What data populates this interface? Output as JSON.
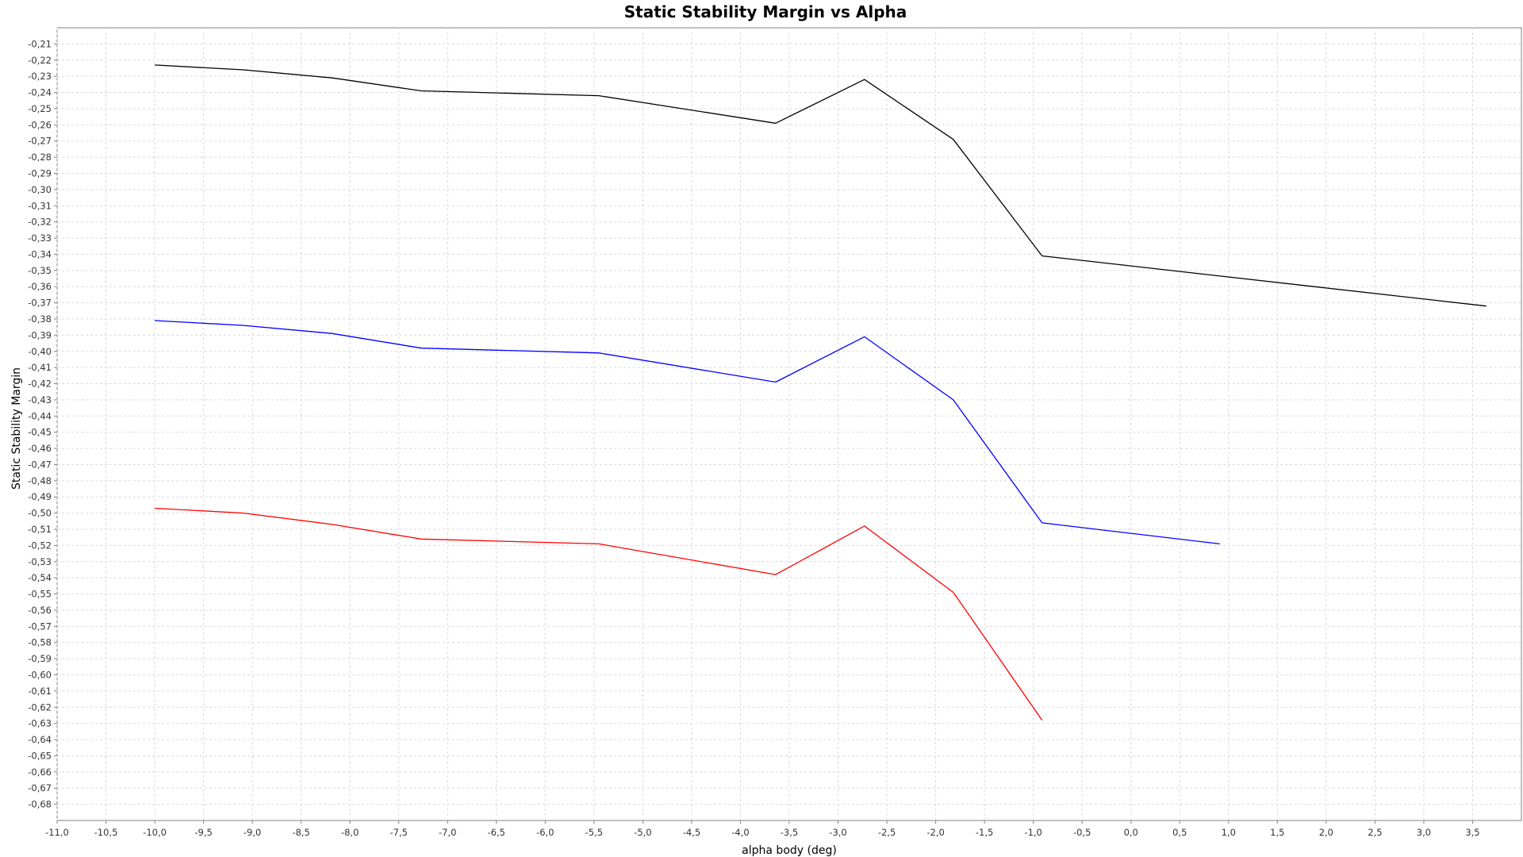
{
  "chart_data": {
    "type": "line",
    "title": "Static Stability Margin vs Alpha",
    "xlabel": "alpha body (deg)",
    "ylabel": "Static Stability Margin",
    "xlim": [
      -11.0,
      4.0
    ],
    "ylim": [
      -0.69,
      -0.2
    ],
    "x_ticks": [
      "-11,0",
      "-10,5",
      "-10,0",
      "-9,5",
      "-9,0",
      "-8,5",
      "-8,0",
      "-7,5",
      "-7,0",
      "-6,5",
      "-6,0",
      "-5,5",
      "-5,0",
      "-4,5",
      "-4,0",
      "-3,5",
      "-3,0",
      "-2,5",
      "-2,0",
      "-1,5",
      "-1,0",
      "-0,5",
      "0,0",
      "0,5",
      "1,0",
      "1,5",
      "2,0",
      "2,5",
      "3,0",
      "3,5"
    ],
    "y_ticks": [
      "-0,21",
      "-0,22",
      "-0,23",
      "-0,24",
      "-0,25",
      "-0,26",
      "-0,27",
      "-0,28",
      "-0,29",
      "-0,30",
      "-0,31",
      "-0,32",
      "-0,33",
      "-0,34",
      "-0,35",
      "-0,36",
      "-0,37",
      "-0,38",
      "-0,39",
      "-0,40",
      "-0,41",
      "-0,42",
      "-0,43",
      "-0,44",
      "-0,45",
      "-0,46",
      "-0,47",
      "-0,48",
      "-0,49",
      "-0,50",
      "-0,51",
      "-0,52",
      "-0,53",
      "-0,54",
      "-0,55",
      "-0,56",
      "-0,57",
      "-0,58",
      "-0,59",
      "-0,60",
      "-0,61",
      "-0,62",
      "-0,63",
      "-0,64",
      "-0,65",
      "-0,66",
      "-0,67",
      "-0,68"
    ],
    "grid": true,
    "series": [
      {
        "color": "#000000",
        "x": [
          -10.0,
          -9.09,
          -8.18,
          -7.27,
          -5.45,
          -3.64,
          -2.73,
          -1.82,
          -0.91,
          3.64
        ],
        "y": [
          -0.223,
          -0.226,
          -0.231,
          -0.239,
          -0.242,
          -0.259,
          -0.232,
          -0.269,
          -0.341,
          -0.372
        ]
      },
      {
        "color": "#0000ff",
        "x": [
          -10.0,
          -9.09,
          -8.18,
          -7.27,
          -5.45,
          -3.64,
          -2.73,
          -1.82,
          -0.91,
          0.91
        ],
        "y": [
          -0.381,
          -0.384,
          -0.389,
          -0.398,
          -0.401,
          -0.419,
          -0.391,
          -0.43,
          -0.506,
          -0.519
        ]
      },
      {
        "color": "#ff0000",
        "x": [
          -10.0,
          -9.09,
          -8.18,
          -7.27,
          -5.45,
          -3.64,
          -2.73,
          -1.82,
          -0.91
        ],
        "y": [
          -0.497,
          -0.5,
          -0.507,
          -0.516,
          -0.519,
          -0.538,
          -0.508,
          -0.549,
          -0.628
        ]
      }
    ]
  }
}
